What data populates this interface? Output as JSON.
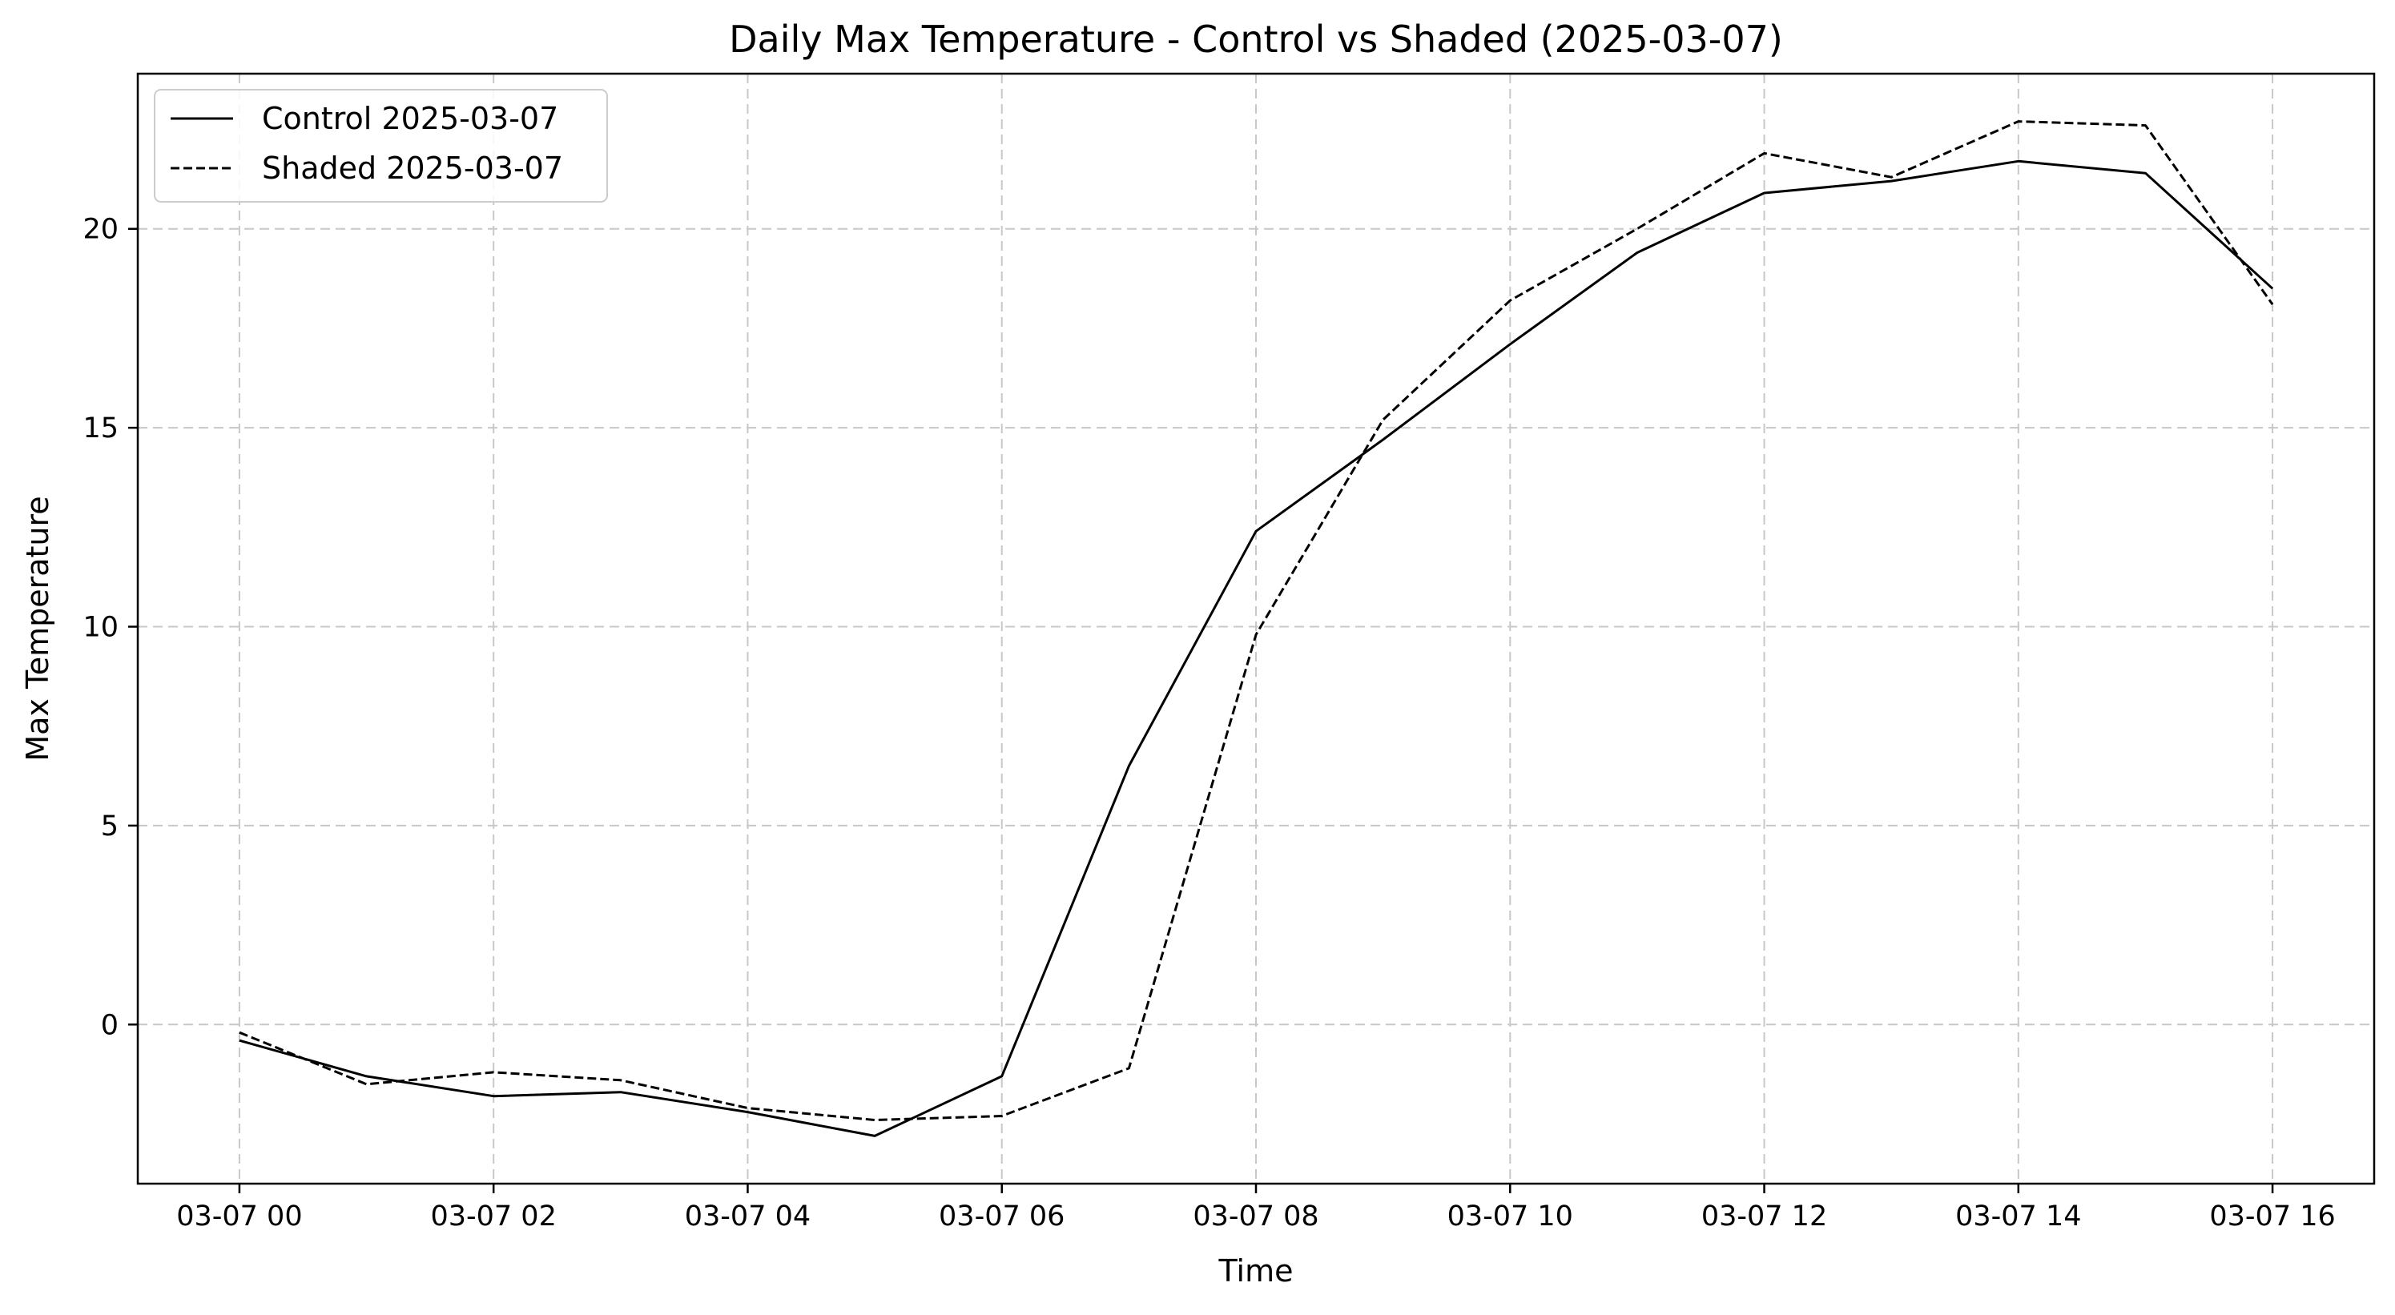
{
  "chart_data": {
    "type": "line",
    "title": "Daily Max Temperature - Control vs Shaded (2025-03-07)",
    "xlabel": "Time",
    "ylabel": "Max Temperature",
    "x_hours": [
      0,
      1,
      2,
      3,
      4,
      5,
      6,
      7,
      8,
      9,
      10,
      11,
      12,
      13,
      14,
      15,
      16
    ],
    "xlim": [
      -0.8,
      16.8
    ],
    "ylim": [
      -4.0,
      23.9
    ],
    "x_ticks": [
      {
        "value": 0,
        "label": "03-07 00"
      },
      {
        "value": 2,
        "label": "03-07 02"
      },
      {
        "value": 4,
        "label": "03-07 04"
      },
      {
        "value": 6,
        "label": "03-07 06"
      },
      {
        "value": 8,
        "label": "03-07 08"
      },
      {
        "value": 10,
        "label": "03-07 10"
      },
      {
        "value": 12,
        "label": "03-07 12"
      },
      {
        "value": 14,
        "label": "03-07 14"
      },
      {
        "value": 16,
        "label": "03-07 16"
      }
    ],
    "y_ticks": [
      {
        "value": 0,
        "label": "0"
      },
      {
        "value": 5,
        "label": "5"
      },
      {
        "value": 10,
        "label": "10"
      },
      {
        "value": 15,
        "label": "15"
      },
      {
        "value": 20,
        "label": "20"
      }
    ],
    "grid": true,
    "legend_position": "top-left",
    "series": [
      {
        "name": "Control 2025-03-07",
        "style": "solid",
        "color": "#000000",
        "values": [
          -0.4,
          -1.3,
          -1.8,
          -1.7,
          -2.2,
          -2.8,
          -1.3,
          6.5,
          12.4,
          14.7,
          17.1,
          19.4,
          20.9,
          21.2,
          21.7,
          21.4,
          18.5
        ]
      },
      {
        "name": "Shaded 2025-03-07",
        "style": "dashed",
        "color": "#000000",
        "values": [
          -0.2,
          -1.5,
          -1.2,
          -1.4,
          -2.1,
          -2.4,
          -2.3,
          -1.1,
          9.8,
          15.2,
          18.2,
          20.0,
          21.9,
          21.3,
          22.7,
          22.6,
          18.1
        ]
      }
    ]
  }
}
